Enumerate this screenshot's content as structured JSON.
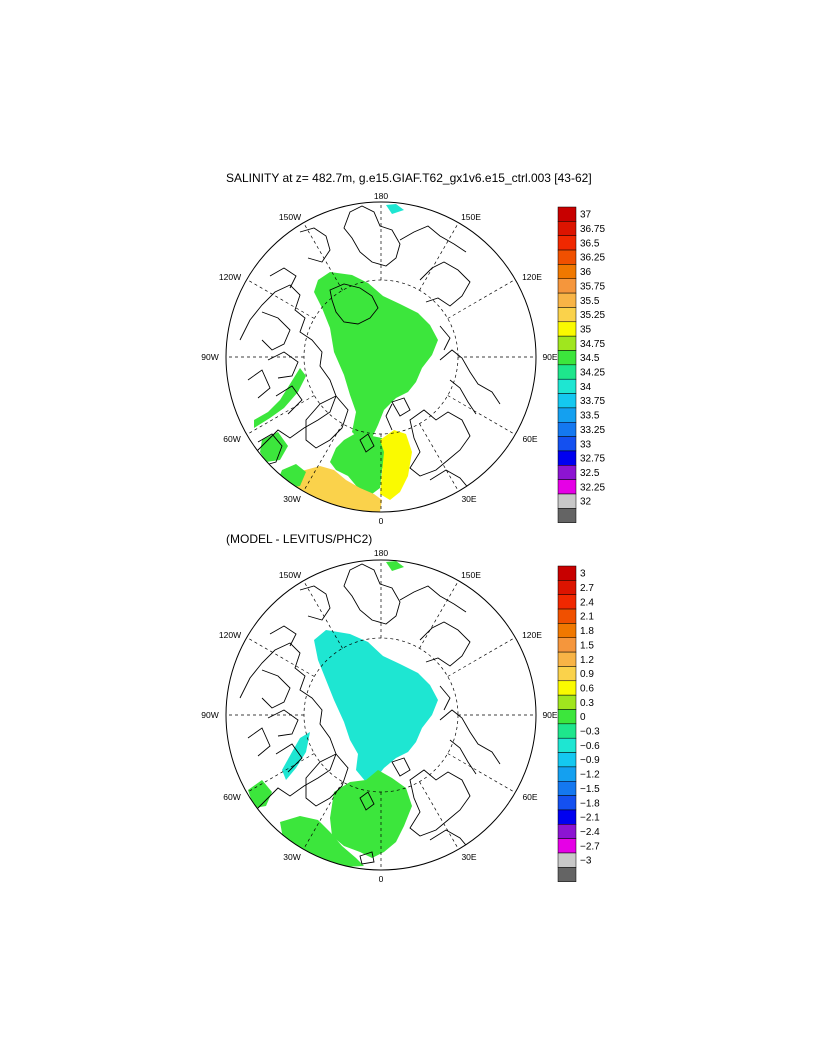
{
  "panels": [
    {
      "title": "SALINITY at z= 482.7m, g.e15.GIAF.T62_gx1v6.e15_ctrl.003 [43-62]",
      "lon_labels": {
        "n": "180",
        "nw": "150W",
        "ne": "150E",
        "wnw": "120W",
        "ene": "120E",
        "w": "90W",
        "e": "90E",
        "wsw": "60W",
        "ese": "60E",
        "sw": "30W",
        "se": "30E",
        "s": "0"
      },
      "colorbar": {
        "labels": [
          "37",
          "36.75",
          "36.5",
          "36.25",
          "36",
          "35.75",
          "35.5",
          "35.25",
          "35",
          "34.75",
          "34.5",
          "34.25",
          "34",
          "33.75",
          "33.5",
          "33.25",
          "33",
          "32.75",
          "32.5",
          "32.25",
          "32"
        ],
        "colors": [
          "#c80000",
          "#dc1400",
          "#f02800",
          "#f05000",
          "#f07800",
          "#f5963c",
          "#f8b446",
          "#fad24b",
          "#fafa00",
          "#a0e61e",
          "#3ce63c",
          "#1ee68c",
          "#1ee6d2",
          "#14c8f0",
          "#14a0f0",
          "#1478f0",
          "#1450f0",
          "#0000f0",
          "#8c14d2",
          "#e600e6",
          "#c8c8c8",
          "#646464"
        ]
      }
    },
    {
      "title": "(MODEL - LEVITUS/PHC2)",
      "lon_labels": {
        "n": "180",
        "nw": "150W",
        "ne": "150E",
        "wnw": "120W",
        "ene": "120E",
        "w": "90W",
        "e": "90E",
        "wsw": "60W",
        "ese": "60E",
        "sw": "30W",
        "se": "30E",
        "s": "0"
      },
      "colorbar": {
        "labels": [
          "3",
          "2.7",
          "2.4",
          "2.1",
          "1.8",
          "1.5",
          "1.2",
          "0.9",
          "0.6",
          "0.3",
          "0",
          "−0.3",
          "−0.6",
          "−0.9",
          "−1.2",
          "−1.5",
          "−1.8",
          "−2.1",
          "−2.4",
          "−2.7",
          "−3"
        ],
        "colors": [
          "#c80000",
          "#dc1400",
          "#f02800",
          "#f05000",
          "#f07800",
          "#f5963c",
          "#f8b446",
          "#fad24b",
          "#fafa00",
          "#a0e61e",
          "#3ce63c",
          "#1ee68c",
          "#1ee6d2",
          "#14c8f0",
          "#14a0f0",
          "#1478f0",
          "#1450f0",
          "#0000f0",
          "#8c14d2",
          "#e600e6",
          "#c8c8c8",
          "#646464"
        ]
      }
    }
  ]
}
